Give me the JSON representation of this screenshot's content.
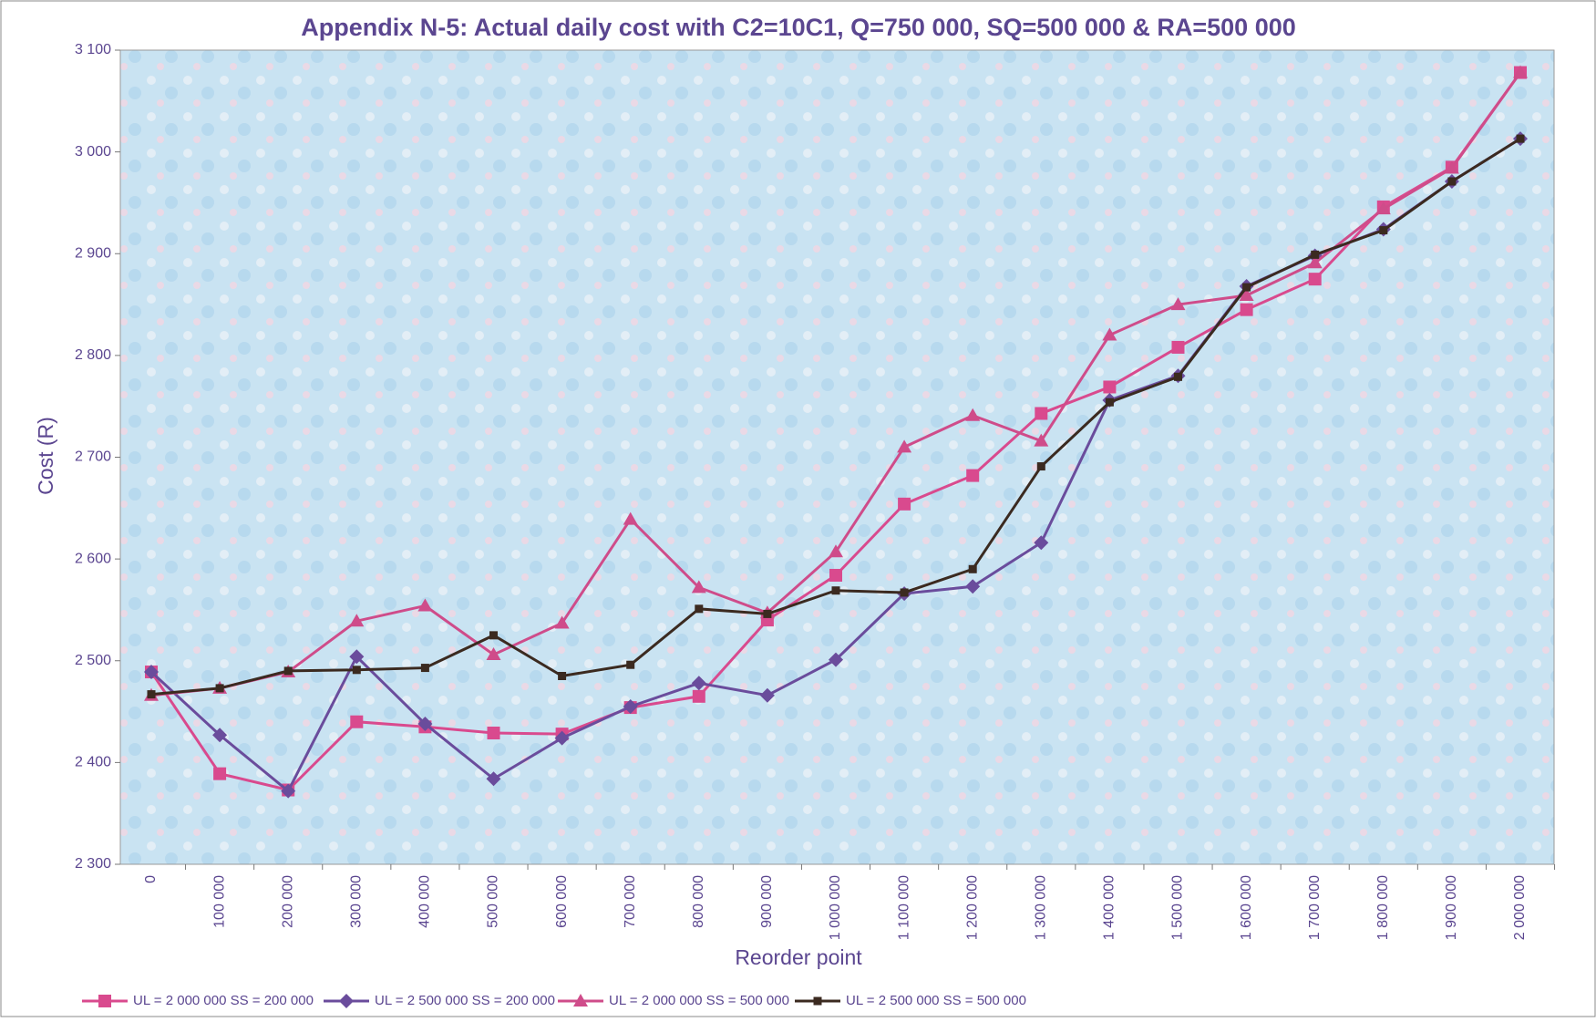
{
  "chart_data": {
    "type": "line",
    "title": "Appendix N-5: Actual daily cost with C2=10C1, Q=750 000, SQ=500 000 & RA=500 000",
    "x_label": "Reorder point",
    "y_label": "Cost (R)",
    "categories": [
      "0",
      "100 000",
      "200 000",
      "300 000",
      "400 000",
      "500 000",
      "600 000",
      "700 000",
      "800 000",
      "900 000",
      "1 000 000",
      "1 100 000",
      "1 200 000",
      "1 300 000",
      "1 400 000",
      "1 500 000",
      "1 600 000",
      "1 700 000",
      "1 800 000",
      "1 900 000",
      "2 000 000"
    ],
    "ylim": [
      2300,
      3100
    ],
    "yticks": [
      {
        "value": 2300,
        "label": "2 300"
      },
      {
        "value": 2400,
        "label": "2 400"
      },
      {
        "value": 2500,
        "label": "2 500"
      },
      {
        "value": 2600,
        "label": "2 600"
      },
      {
        "value": 2700,
        "label": "2 700"
      },
      {
        "value": 2800,
        "label": "2 800"
      },
      {
        "value": 2900,
        "label": "2 900"
      },
      {
        "value": 3000,
        "label": "3 000"
      },
      {
        "value": 3100,
        "label": "3 100"
      }
    ],
    "grid": false,
    "legend_position": "bottom",
    "series": [
      {
        "name": "UL = 2 000 000 SS = 200 000",
        "color": "#d94a8e",
        "marker": "square",
        "values": [
          2489,
          2389,
          2373,
          2440,
          2435,
          2429,
          2428,
          2454,
          2465,
          2540,
          2584,
          2654,
          2682,
          2743,
          2769,
          2808,
          2845,
          2875,
          2946,
          2985,
          3078
        ]
      },
      {
        "name": "UL = 2 500 000 SS = 200 000",
        "color": "#6a4c9c",
        "marker": "diamond",
        "values": [
          2489,
          2427,
          2372,
          2504,
          2438,
          2384,
          2424,
          2455,
          2478,
          2466,
          2501,
          2566,
          2573,
          2616,
          2756,
          2780,
          2868,
          2898,
          2924,
          2971,
          3013
        ]
      },
      {
        "name": "UL = 2 000 000 SS = 500 000",
        "color": "#cf4c8a",
        "marker": "triangle",
        "values": [
          2466,
          2473,
          2489,
          2539,
          2554,
          2506,
          2537,
          2639,
          2572,
          2547,
          2607,
          2710,
          2741,
          2716,
          2820,
          2850,
          2859,
          2891,
          2944,
          2984,
          3078
        ]
      },
      {
        "name": "UL = 2 500 000 SS = 500 000",
        "color": "#3b2a20",
        "marker": "small-square",
        "values": [
          2467,
          2473,
          2490,
          2491,
          2493,
          2525,
          2485,
          2496,
          2551,
          2546,
          2569,
          2567,
          2590,
          2691,
          2754,
          2779,
          2867,
          2899,
          2923,
          2971,
          3013
        ]
      }
    ]
  }
}
